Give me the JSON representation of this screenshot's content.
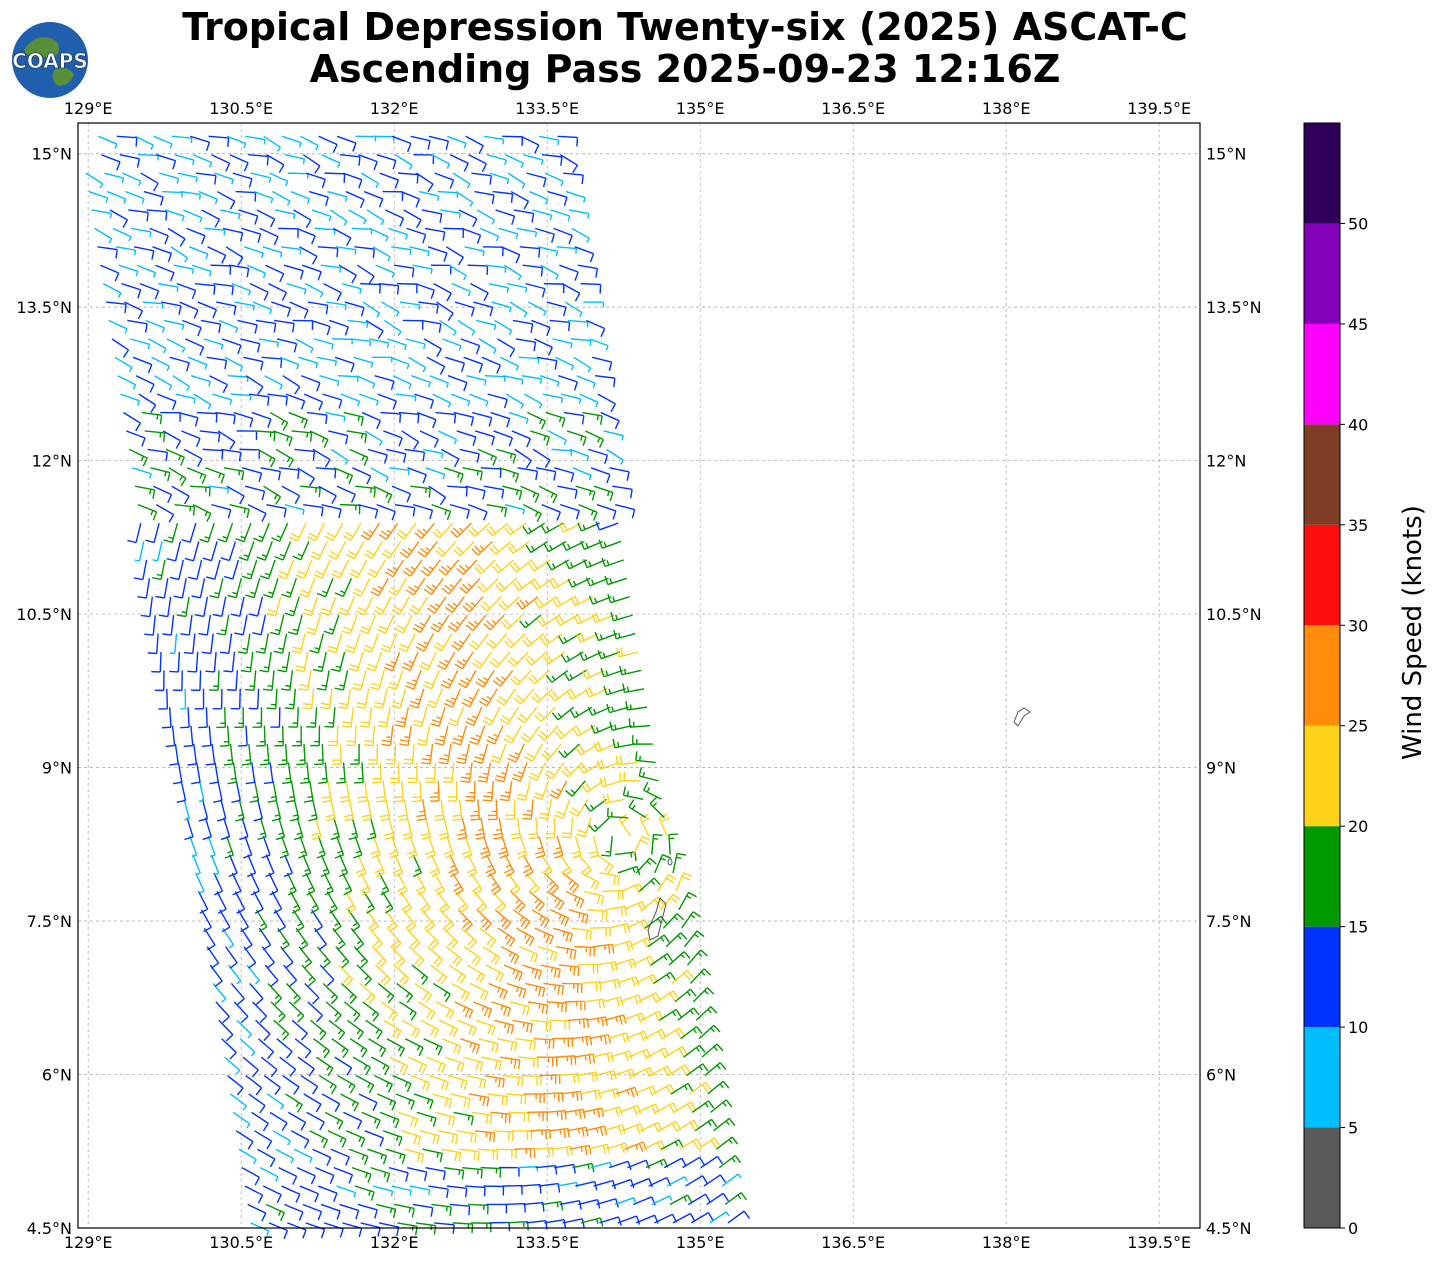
{
  "title": {
    "line1": "Tropical Depression Twenty-six (2025) ASCAT-C",
    "line2": "Ascending Pass 2025-09-23 12:16Z"
  },
  "logo": {
    "text": "COAPS"
  },
  "map": {
    "lon_range": [
      128.9,
      139.9
    ],
    "lat_range": [
      4.5,
      15.3
    ],
    "lon_ticks": [
      "129°E",
      "130.5°E",
      "132°E",
      "133.5°E",
      "135°E",
      "136.5°E",
      "138°E",
      "139.5°E"
    ],
    "lon_tick_values": [
      129,
      130.5,
      132,
      133.5,
      135,
      136.5,
      138,
      139.5
    ],
    "lat_ticks": [
      "15°N",
      "13.5°N",
      "12°N",
      "10.5°N",
      "9°N",
      "7.5°N",
      "6°N",
      "4.5°N"
    ],
    "lat_tick_values": [
      15,
      13.5,
      12,
      10.5,
      9,
      7.5,
      6,
      4.5
    ],
    "grid": true,
    "gridline_style": "dashed gray"
  },
  "colorbar": {
    "label": "Wind Speed (knots)",
    "ticks": [
      "0",
      "5",
      "10",
      "15",
      "20",
      "25",
      "30",
      "35",
      "40",
      "45",
      "50"
    ],
    "bins": [
      {
        "min": 0,
        "max": 5,
        "color": "#595959"
      },
      {
        "min": 5,
        "max": 10,
        "color": "#00bfff"
      },
      {
        "min": 10,
        "max": 15,
        "color": "#0033ff"
      },
      {
        "min": 15,
        "max": 20,
        "color": "#009900"
      },
      {
        "min": 20,
        "max": 25,
        "color": "#ffd21a"
      },
      {
        "min": 25,
        "max": 30,
        "color": "#ff8c0a"
      },
      {
        "min": 30,
        "max": 35,
        "color": "#ff0d0d"
      },
      {
        "min": 35,
        "max": 40,
        "color": "#803d26"
      },
      {
        "min": 40,
        "max": 45,
        "color": "#ff00ff"
      },
      {
        "min": 45,
        "max": 50,
        "color": "#8400b8"
      },
      {
        "min": 50,
        "max": 55,
        "color": "#2e0059"
      }
    ]
  }
}
